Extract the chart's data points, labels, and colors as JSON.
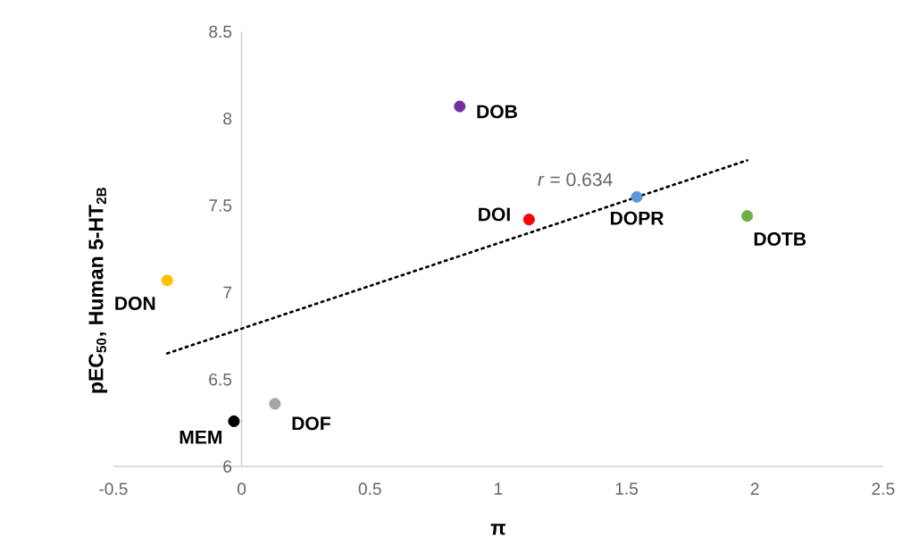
{
  "chart_data": {
    "type": "scatter",
    "xlabel": "π",
    "ylabel": "pEC$_{50}$, Human 5-HT$_{2B}$",
    "xlim": [
      -0.5,
      2.5
    ],
    "xticks": [
      -0.5,
      0,
      0.5,
      1,
      1.5,
      2,
      2.5
    ],
    "ylim": [
      6,
      8.5
    ],
    "yticks": [
      6,
      6.5,
      7,
      7.5,
      8,
      8.5
    ],
    "series": [
      {
        "name": "DON",
        "color": "#ffc000",
        "marker": "circle",
        "x": [
          -0.29
        ],
        "values": [
          7.07
        ]
      },
      {
        "name": "MEM",
        "color": "#000000",
        "marker": "circle",
        "x": [
          -0.03
        ],
        "values": [
          6.26
        ]
      },
      {
        "name": "DOF",
        "color": "#a5a5a5",
        "marker": "circle",
        "x": [
          0.13
        ],
        "values": [
          6.36
        ]
      },
      {
        "name": "DOB",
        "color": "#7030a0",
        "marker": "circle",
        "x": [
          0.85
        ],
        "values": [
          8.07
        ]
      },
      {
        "name": "DOI",
        "color": "#ff0000",
        "marker": "circle",
        "x": [
          1.12
        ],
        "values": [
          7.42
        ]
      },
      {
        "name": "DOPR",
        "color": "#5b9bd5",
        "marker": "circle",
        "x": [
          1.54
        ],
        "values": [
          7.55
        ]
      },
      {
        "name": "DOTB",
        "color": "#70ad47",
        "marker": "circle",
        "x": [
          1.97
        ],
        "values": [
          7.44
        ]
      },
      {
        "type": "line",
        "color": "#000000",
        "line_style": "dotted",
        "marker": "none",
        "x": [
          -0.29,
          1.97
        ],
        "values": [
          6.65,
          7.76
        ]
      }
    ],
    "annotations": [
      "*r* = 0.634"
    ]
  }
}
